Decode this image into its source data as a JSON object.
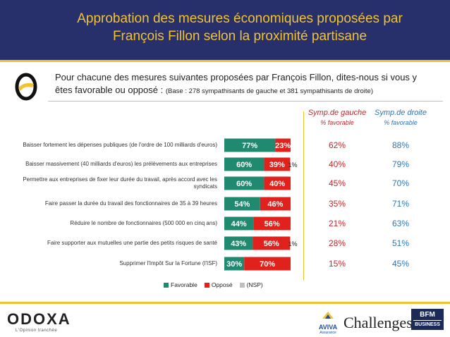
{
  "header": {
    "title_line1": "Approbation des mesures économiques proposées par",
    "title_line2": "François Fillon selon la proximité partisane"
  },
  "question": {
    "text": "Pour chacune des mesures suivantes proposées par François Fillon, dites-nous si vous y êtes favorable ou opposé :",
    "base": "(Base : 278 sympathisants de gauche et 381 sympathisants de droite)"
  },
  "columns": {
    "gauche": {
      "title": "Symp.de gauche",
      "sub": "% favorable",
      "color": "#c0282d"
    },
    "droite": {
      "title": "Symp.de droite",
      "sub": "% favorable",
      "color": "#2e75b6"
    }
  },
  "colors": {
    "favorable": "#1f8a6f",
    "oppose": "#e1211c",
    "nsp": "#bfbfbf",
    "accent": "#f2c230",
    "header": "#27306a"
  },
  "chart_data": {
    "type": "bar",
    "orientation": "horizontal",
    "stacked": true,
    "categories": [
      "Baisser fortement les dépenses publiques (de l'ordre de 100 milliards d'euros)",
      "Baisser massivement (40 milliards d'euros) les prélèvements aux entreprises",
      "Permettre aux entreprises de fixer leur durée du travail, après accord avec les syndicats",
      "Faire passer la durée du travail des fonctionnaires de 35 à 39 heures",
      "Réduire le nombre de fonctionnaires (500 000 en cinq ans)",
      "Faire supporter aux mutuelles une partie des petits risques de santé",
      "Supprimer l'Impôt Sur la Fortune (l'ISF)"
    ],
    "series": [
      {
        "name": "Favorable",
        "values": [
          77,
          60,
          60,
          54,
          44,
          43,
          30
        ],
        "labels": [
          "77%",
          "60%",
          "60%",
          "54%",
          "44%",
          "43%",
          "30%"
        ]
      },
      {
        "name": "Opposé",
        "values": [
          23,
          39,
          40,
          46,
          56,
          56,
          70
        ],
        "labels": [
          "23%",
          "39%",
          "40%",
          "46%",
          "56%",
          "56%",
          "70%"
        ]
      },
      {
        "name": "(NSP)",
        "values": [
          0,
          1,
          0,
          0,
          0,
          1,
          0
        ],
        "labels": [
          "",
          "1%",
          "",
          "",
          "",
          "1%",
          ""
        ]
      }
    ],
    "xlim": [
      0,
      100
    ]
  },
  "symp_gauche": [
    "62%",
    "40%",
    "45%",
    "35%",
    "21%",
    "28%",
    "15%"
  ],
  "symp_droite": [
    "88%",
    "79%",
    "70%",
    "71%",
    "63%",
    "51%",
    "45%"
  ],
  "legend": [
    "Favorable",
    "Opposé",
    "(NSP)"
  ],
  "footer": {
    "odoxa": "ODOXA",
    "odoxa_tagline": "L'Opinion tranchée",
    "aviva": "AVIVA",
    "aviva_sub": "Assurance",
    "challenges": "Challenges",
    "bfm_line1": "BFM",
    "bfm_line2": "BUSINESS"
  }
}
